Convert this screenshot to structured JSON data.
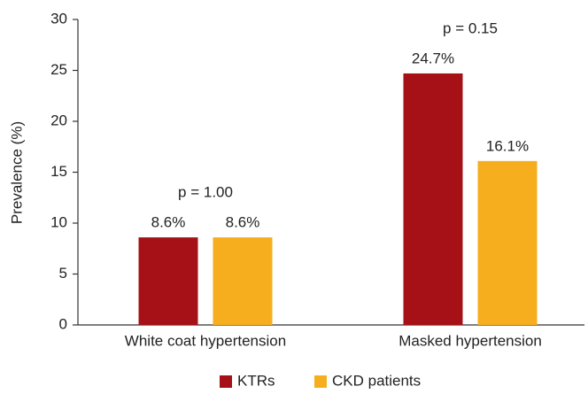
{
  "chart_data": {
    "type": "bar",
    "y_label": "Prevalence (%)",
    "categories": [
      "White coat hypertension",
      "Masked hypertension"
    ],
    "series": [
      {
        "name": "KTRs",
        "color": "#a51116",
        "values": [
          8.6,
          24.7
        ],
        "value_labels": [
          "8.6%",
          "24.7%"
        ]
      },
      {
        "name": "CKD patients",
        "color": "#f6ae1e",
        "values": [
          8.6,
          16.1
        ],
        "value_labels": [
          "8.6%",
          "16.1%"
        ]
      }
    ],
    "annotations": [
      "p = 1.00",
      "p = 0.15"
    ],
    "ylim": [
      0,
      30
    ],
    "yticks": [
      0,
      5,
      10,
      15,
      20,
      25,
      30
    ],
    "legend": "bottom"
  }
}
